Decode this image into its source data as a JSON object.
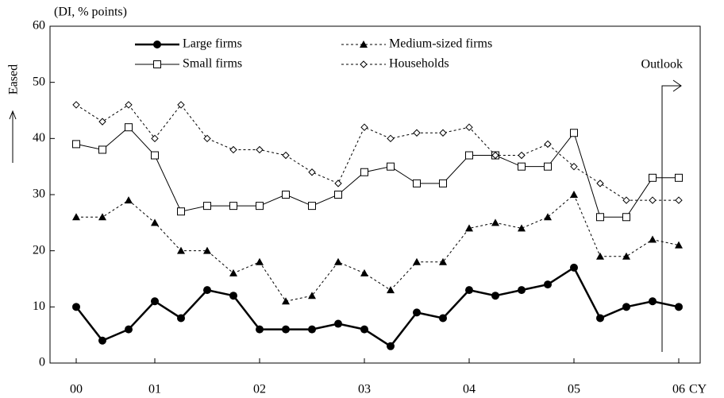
{
  "chart_data": {
    "type": "line",
    "subtitle": "(DI, % points)",
    "y_label": "Eased",
    "x_unit": "CY",
    "annotation": "Outlook",
    "categories": [
      "00",
      null,
      null,
      "01",
      null,
      null,
      null,
      "02",
      null,
      null,
      null,
      "03",
      null,
      null,
      null,
      "04",
      null,
      null,
      null,
      "05",
      null,
      null,
      null,
      "06"
    ],
    "series": [
      {
        "name": "Large firms",
        "color": "#000000",
        "style": "solid-bold",
        "marker": "circle",
        "values": [
          10,
          4,
          6,
          11,
          8,
          13,
          12,
          6,
          6,
          6,
          7,
          6,
          3,
          9,
          8,
          13,
          12,
          13,
          14,
          17,
          8,
          10,
          11,
          10
        ]
      },
      {
        "name": "Medium-sized firms",
        "color": "#000000",
        "style": "dotted",
        "marker": "triangle",
        "values": [
          26,
          26,
          29,
          25,
          20,
          20,
          16,
          18,
          11,
          12,
          18,
          16,
          13,
          18,
          18,
          24,
          25,
          24,
          26,
          30,
          19,
          19,
          22,
          21
        ]
      },
      {
        "name": "Small firms",
        "color": "#000000",
        "style": "solid",
        "marker": "square",
        "values": [
          39,
          38,
          42,
          37,
          27,
          28,
          28,
          28,
          30,
          28,
          30,
          34,
          35,
          32,
          32,
          37,
          37,
          35,
          35,
          41,
          26,
          26,
          33,
          33
        ]
      },
      {
        "name": "Households",
        "color": "#000000",
        "style": "dotted",
        "marker": "diamond",
        "values": [
          46,
          43,
          46,
          40,
          46,
          40,
          38,
          38,
          37,
          34,
          32,
          42,
          40,
          41,
          41,
          42,
          37,
          37,
          39,
          35,
          32,
          29,
          29,
          29
        ]
      }
    ],
    "ylim": [
      0,
      60
    ],
    "yticks": [
      0,
      10,
      20,
      30,
      40,
      50,
      60
    ],
    "grid": false
  }
}
